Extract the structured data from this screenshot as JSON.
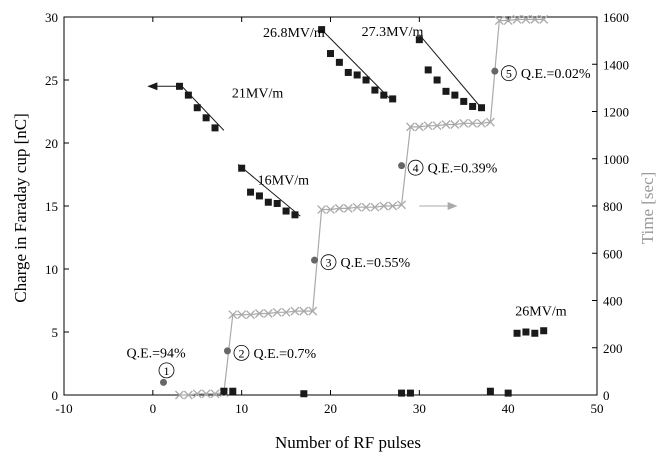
{
  "chart_data": {
    "type": "scatter",
    "xlabel": "Number of RF pulses",
    "ylabel": "Charge in Faraday cup [nC]",
    "y2label": "Time [sec]",
    "xlim": [
      -10,
      50
    ],
    "ylim": [
      0,
      30
    ],
    "y2lim": [
      0,
      1600
    ],
    "xticks": [
      -10,
      0,
      10,
      20,
      30,
      40,
      50
    ],
    "yticks": [
      0,
      5,
      10,
      15,
      20,
      25,
      30
    ],
    "y2ticks": [
      0,
      200,
      400,
      600,
      800,
      1000,
      1200,
      1400,
      1600
    ],
    "grid": false,
    "colors": {
      "charge": "#1a1a1a",
      "time": "#aaaaaa",
      "qe_point": "#666666",
      "time_label": "#999999",
      "axis": "#000000"
    },
    "series": [
      {
        "axis": "left",
        "marker": "square",
        "x": [
          3,
          4,
          5,
          6,
          7,
          8,
          9,
          10,
          11,
          12,
          13,
          14,
          15,
          16,
          17,
          19,
          20,
          21,
          22,
          23,
          24,
          25,
          26,
          27,
          28,
          29,
          30,
          31,
          32,
          33,
          34,
          35,
          36,
          37,
          38,
          40,
          41,
          42,
          43,
          44
        ],
        "y": [
          24.5,
          23.8,
          22.8,
          22.0,
          21.2,
          0.3,
          0.3,
          18.0,
          16.1,
          15.8,
          15.3,
          15.2,
          14.6,
          14.3,
          0.1,
          29.0,
          27.1,
          26.4,
          25.6,
          25.4,
          25.0,
          24.2,
          23.8,
          23.5,
          0.15,
          0.15,
          28.2,
          25.8,
          25.0,
          24.1,
          23.8,
          23.3,
          22.9,
          22.8,
          0.3,
          0.15,
          4.9,
          5.0,
          4.9,
          5.1
        ]
      },
      {
        "axis": "right",
        "marker": "x",
        "x": [
          3,
          4,
          5,
          6,
          7,
          8,
          9,
          10,
          11,
          12,
          13,
          14,
          15,
          16,
          17,
          18,
          19,
          20,
          21,
          22,
          23,
          24,
          25,
          26,
          27,
          28,
          29,
          30,
          31,
          32,
          33,
          34,
          35,
          36,
          37,
          38,
          39,
          40,
          41,
          42,
          43,
          44
        ],
        "y": [
          0,
          0,
          5,
          5,
          5,
          10,
          340,
          340,
          340,
          345,
          345,
          350,
          350,
          355,
          355,
          355,
          785,
          785,
          790,
          790,
          795,
          795,
          795,
          800,
          800,
          805,
          1135,
          1135,
          1140,
          1140,
          1145,
          1145,
          1150,
          1150,
          1150,
          1155,
          1585,
          1585,
          1590,
          1590,
          1590,
          1590
        ]
      }
    ],
    "qe_points": [
      {
        "num": "1",
        "x": 1.2,
        "y": 1.0,
        "label": "Q.E.=94%"
      },
      {
        "num": "2",
        "x": 8.4,
        "y": 3.5,
        "label": "Q.E.=0.7%"
      },
      {
        "num": "3",
        "x": 18.2,
        "y": 10.7,
        "label": "Q.E.=0.55%"
      },
      {
        "num": "4",
        "x": 28.0,
        "y": 18.2,
        "label": "Q.E.=0.39%"
      },
      {
        "num": "5",
        "x": 38.5,
        "y": 25.7,
        "label": "Q.E.=0.02%"
      }
    ],
    "field_labels": [
      {
        "text": "21MV/m",
        "x": 8.9,
        "y": 23.6
      },
      {
        "text": "16MV/m",
        "x": 11.8,
        "y": 16.7
      },
      {
        "text": "26.8MV/m",
        "x": 12.4,
        "y": 28.4
      },
      {
        "text": "27.3MV/m",
        "x": 23.5,
        "y": 28.5
      },
      {
        "text": "26MV/m",
        "x": 40.8,
        "y": 6.3
      }
    ],
    "fit_segments": [
      {
        "x1": 3,
        "y1": 24.7,
        "x2": 8,
        "y2": 21.0
      },
      {
        "x1": 9.6,
        "y1": 18.3,
        "x2": 16.6,
        "y2": 14.2
      },
      {
        "x1": 19,
        "y1": 29.0,
        "x2": 27,
        "y2": 23.3
      },
      {
        "x1": 30,
        "y1": 28.6,
        "x2": 37.2,
        "y2": 22.6
      }
    ],
    "annotations": [
      {
        "name": "arrow-left-indicator",
        "x1": 3,
        "y1": 24.5,
        "x2": -0.5,
        "y2": 24.5,
        "kind": "charge"
      },
      {
        "name": "arrow-right-indicator",
        "x1": 30,
        "y1": 15.0,
        "x2": 34.2,
        "y2": 15.0,
        "kind": "time"
      }
    ]
  }
}
